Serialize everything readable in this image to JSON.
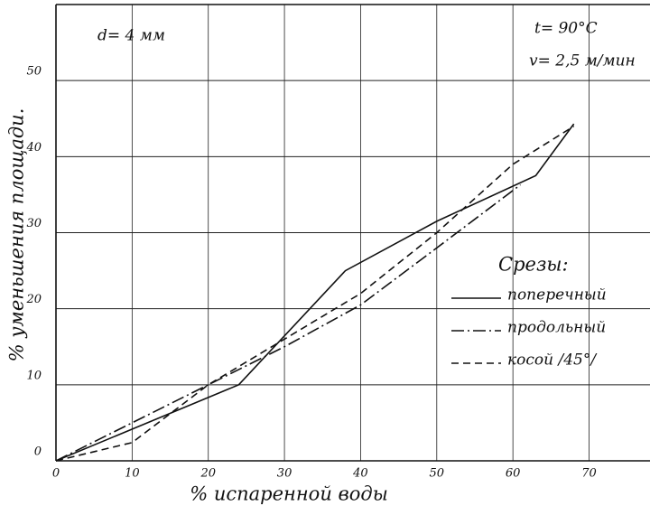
{
  "chart_data": {
    "type": "line",
    "annotations": [
      "d= 4 мм",
      "t= 90°C",
      "v= 2,5 м/мин"
    ],
    "xlabel": "% испаренной воды",
    "ylabel": "% уменьшения площади.",
    "legend_title": "Срезы:",
    "series": [
      {
        "name": "поперечный",
        "color": "#111111",
        "dash": "solid",
        "x": [
          0,
          24,
          38,
          50,
          63,
          68
        ],
        "values": [
          0,
          10,
          25,
          31.5,
          37.5,
          44.3
        ]
      },
      {
        "name": "продольный",
        "color": "#111111",
        "dash": "dashdot",
        "x": [
          0,
          10,
          20,
          30,
          40,
          50,
          61
        ],
        "values": [
          0,
          5,
          10,
          15,
          20.5,
          28,
          36.3
        ]
      },
      {
        "name": "косой /45°/",
        "color": "#111111",
        "dash": "dashed",
        "x": [
          0,
          10,
          20,
          30,
          40,
          50,
          60,
          68
        ],
        "values": [
          0,
          2.4,
          10,
          16,
          22,
          30,
          39,
          44
        ]
      }
    ],
    "xlim": [
      0,
      78
    ],
    "xticks": [
      0,
      10,
      20,
      30,
      40,
      50,
      60,
      70
    ],
    "ylim": [
      0,
      60
    ],
    "yticks": [
      0,
      10,
      20,
      30,
      40,
      50
    ],
    "grid": true,
    "legend": "lower right"
  }
}
